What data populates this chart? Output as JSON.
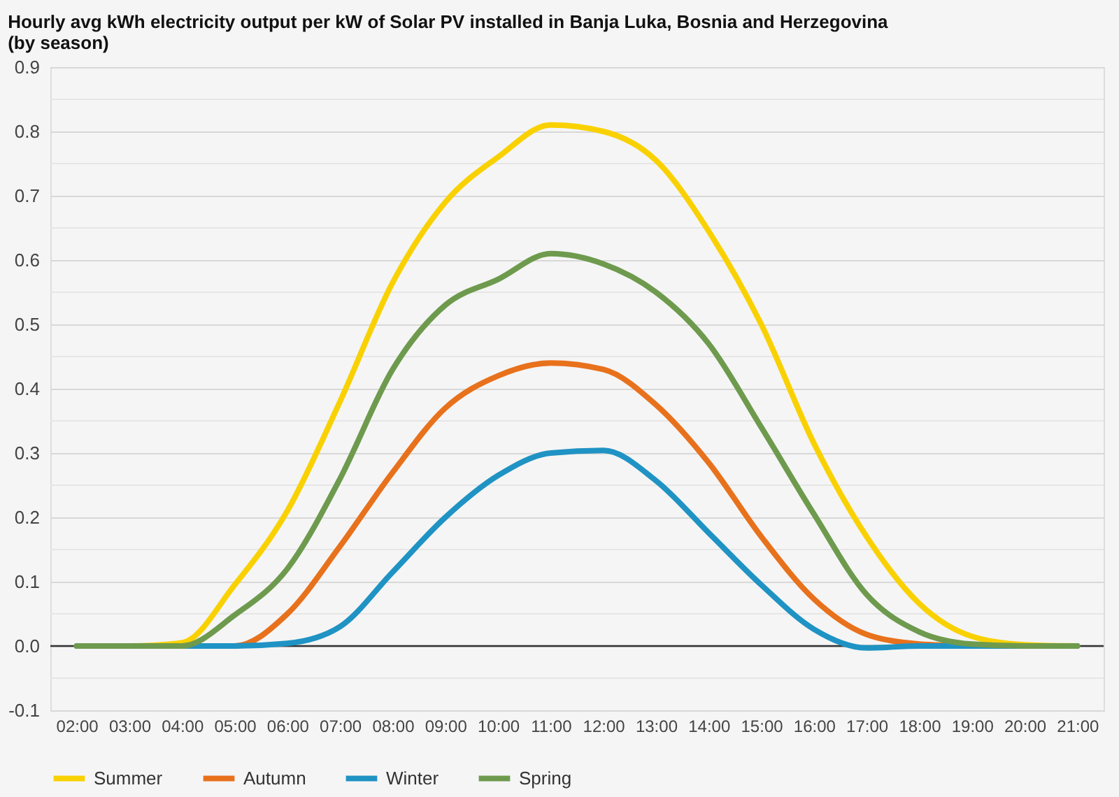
{
  "chart_data": {
    "type": "line",
    "title": "Hourly avg kWh electricity output per kW of Solar PV installed in Banja Luka, Bosnia and Herzegovina (by season)",
    "x": [
      2,
      3,
      4,
      5,
      6,
      7,
      8,
      9,
      10,
      11,
      12,
      13,
      14,
      15,
      16,
      17,
      18,
      19,
      20,
      21
    ],
    "series": [
      {
        "name": "Summer",
        "color": "#f9d100",
        "values": [
          0,
          0,
          0.005,
          0.095,
          0.21,
          0.38,
          0.565,
          0.69,
          0.76,
          0.81,
          0.8,
          0.755,
          0.645,
          0.5,
          0.315,
          0.17,
          0.066,
          0.015,
          0.002,
          0
        ]
      },
      {
        "name": "Autumn",
        "color": "#e8711c",
        "values": [
          null,
          null,
          0,
          0,
          0.05,
          0.155,
          0.27,
          0.37,
          0.42,
          0.44,
          0.43,
          0.375,
          0.285,
          0.17,
          0.073,
          0.018,
          0.003,
          0,
          null,
          null
        ]
      },
      {
        "name": "Winter",
        "color": "#1f93c4",
        "values": [
          0,
          0,
          0,
          0,
          0.004,
          0.03,
          0.115,
          0.2,
          0.265,
          0.3,
          0.304,
          0.257,
          0.176,
          0.095,
          0.026,
          -0.003,
          0,
          0,
          0,
          0
        ]
      },
      {
        "name": "Spring",
        "color": "#6e9a4e",
        "values": [
          0,
          0,
          0,
          0.048,
          0.12,
          0.26,
          0.43,
          0.53,
          0.57,
          0.61,
          0.594,
          0.55,
          0.47,
          0.34,
          0.205,
          0.08,
          0.022,
          0.003,
          0,
          0
        ]
      }
    ],
    "xlim": [
      1.5,
      21.5
    ],
    "xticks": [
      {
        "value": 2,
        "label": "02:00"
      },
      {
        "value": 3,
        "label": "03:00"
      },
      {
        "value": 4,
        "label": "04:00"
      },
      {
        "value": 5,
        "label": "05:00"
      },
      {
        "value": 6,
        "label": "06:00"
      },
      {
        "value": 7,
        "label": "07:00"
      },
      {
        "value": 8,
        "label": "08:00"
      },
      {
        "value": 9,
        "label": "09:00"
      },
      {
        "value": 10,
        "label": "10:00"
      },
      {
        "value": 11,
        "label": "11:00"
      },
      {
        "value": 12,
        "label": "12:00"
      },
      {
        "value": 13,
        "label": "13:00"
      },
      {
        "value": 14,
        "label": "14:00"
      },
      {
        "value": 15,
        "label": "15:00"
      },
      {
        "value": 16,
        "label": "16:00"
      },
      {
        "value": 17,
        "label": "17:00"
      },
      {
        "value": 18,
        "label": "18:00"
      },
      {
        "value": 19,
        "label": "19:00"
      },
      {
        "value": 20,
        "label": "20:00"
      },
      {
        "value": 21,
        "label": "21:00"
      }
    ],
    "ylim": [
      -0.1,
      0.9
    ],
    "yticks": [
      {
        "value": -0.1,
        "label": "-0.1"
      },
      {
        "value": -0.05,
        "label": null
      },
      {
        "value": 0,
        "label": "0.0"
      },
      {
        "value": 0.05,
        "label": null
      },
      {
        "value": 0.1,
        "label": "0.1"
      },
      {
        "value": 0.15,
        "label": null
      },
      {
        "value": 0.2,
        "label": "0.2"
      },
      {
        "value": 0.25,
        "label": null
      },
      {
        "value": 0.3,
        "label": "0.3"
      },
      {
        "value": 0.35,
        "label": null
      },
      {
        "value": 0.4,
        "label": "0.4"
      },
      {
        "value": 0.45,
        "label": null
      },
      {
        "value": 0.5,
        "label": "0.5"
      },
      {
        "value": 0.55,
        "label": null
      },
      {
        "value": 0.6,
        "label": "0.6"
      },
      {
        "value": 0.65,
        "label": null
      },
      {
        "value": 0.7,
        "label": "0.7"
      },
      {
        "value": 0.75,
        "label": null
      },
      {
        "value": 0.8,
        "label": "0.8"
      },
      {
        "value": 0.85,
        "label": null
      },
      {
        "value": 0.9,
        "label": "0.9"
      }
    ],
    "ref_lines": [
      {
        "axis": "y",
        "value": 0,
        "color": "#333333"
      }
    ],
    "grid": "y",
    "legend": "bottom",
    "line_style": "solid"
  }
}
